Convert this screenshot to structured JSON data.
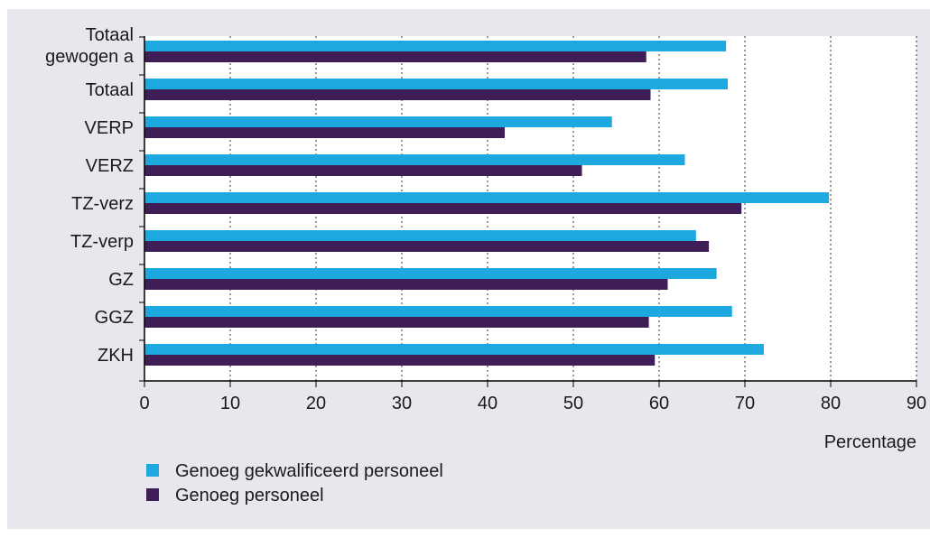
{
  "chart_data": {
    "type": "bar",
    "orientation": "horizontal",
    "categories": [
      "Totaal gewogen a",
      "Totaal",
      "VERP",
      "VERZ",
      "TZ-verz",
      "TZ-verp",
      "GZ",
      "GGZ",
      "ZKH"
    ],
    "category_lines": [
      [
        "Totaal",
        "gewogen a"
      ],
      [
        "Totaal"
      ],
      [
        "VERP"
      ],
      [
        "VERZ"
      ],
      [
        "TZ-verz"
      ],
      [
        "TZ-verp"
      ],
      [
        "GZ"
      ],
      [
        "GGZ"
      ],
      [
        "ZKH"
      ]
    ],
    "series": [
      {
        "name": "Genoeg gekwalificeerd personeel",
        "color": "#1ea8e0",
        "values": [
          67.8,
          68.0,
          54.5,
          63.0,
          79.8,
          64.3,
          66.7,
          68.5,
          72.2
        ]
      },
      {
        "name": "Genoeg personeel",
        "color": "#3f1d57",
        "values": [
          58.5,
          59.0,
          42.0,
          51.0,
          69.6,
          65.8,
          61.0,
          58.8,
          59.5
        ]
      }
    ],
    "xlim": [
      0,
      90
    ],
    "xticks": [
      0,
      10,
      20,
      30,
      40,
      50,
      60,
      70,
      80,
      90
    ],
    "xlabel": "Percentage",
    "ylabel": "",
    "title": "",
    "grid": "vertical dotted",
    "legend": "bottom-left"
  }
}
